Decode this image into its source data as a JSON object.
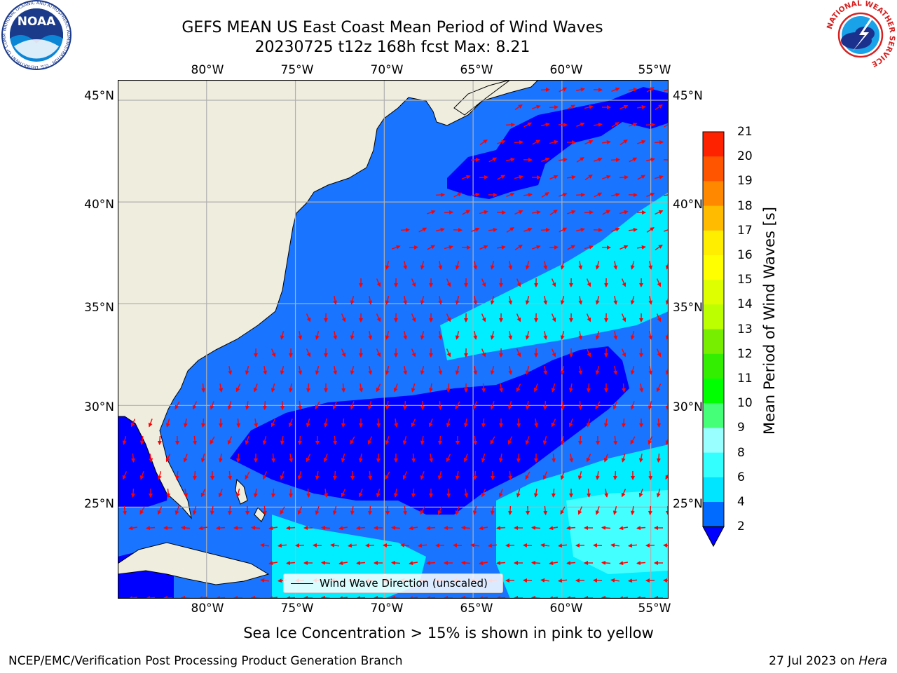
{
  "header": {
    "title_line1": "GEFS MEAN US East Coast Mean Period of Wind Waves",
    "title_line2": "20230725 t12z 168h fcst   Max: 8.21"
  },
  "logos": {
    "noaa": {
      "name": "noaa-logo",
      "text": "NOAA",
      "ring_text": "NATIONAL OCEANIC AND ATMOSPHERIC ADMINISTRATION · U.S. DEPARTMENT OF COMMERCE"
    },
    "nws": {
      "name": "nws-logo",
      "ring_text": "NATIONAL WEATHER SERVICE"
    }
  },
  "map": {
    "lon_ticks": [
      "80°W",
      "75°W",
      "70°W",
      "65°W",
      "60°W",
      "55°W"
    ],
    "lat_ticks": [
      "45°N",
      "40°N",
      "35°N",
      "30°N",
      "25°N"
    ],
    "lon_range": [
      -85,
      -54
    ],
    "lat_range": [
      20.5,
      46
    ],
    "colors": {
      "land": "#efedde",
      "ocean_under_2": "#0000ff",
      "band_2_4": "#1974ff",
      "band_4_6": "#00eeff",
      "band_6_8": "#44ffff",
      "arrow": "#ff0000",
      "grid": "#b0b0b0"
    },
    "arrow_style": "red direction arrows on regular lon/lat grid",
    "legend_label": "Wind Wave Direction (unscaled)"
  },
  "colorbar": {
    "label": "Mean Period of Wind Waves [s]",
    "ticks": [
      "2",
      "4",
      "6",
      "8",
      "9",
      "10",
      "11",
      "12",
      "13",
      "14",
      "15",
      "16",
      "17",
      "18",
      "19",
      "20",
      "21"
    ],
    "colors": [
      "#006cff",
      "#00e5ff",
      "#33ffff",
      "#99ffff",
      "#44ff77",
      "#00ff00",
      "#33ee00",
      "#77ee00",
      "#bbff00",
      "#ddff00",
      "#ffff00",
      "#ffee00",
      "#ffbb00",
      "#ff8800",
      "#ff5500",
      "#ff2200"
    ],
    "under_color": "#0000ff"
  },
  "footer": {
    "note": "Sea Ice Concentration > 15% is shown in pink to yellow",
    "credit_left": "NCEP/EMC/Verification Post Processing Product Generation Branch",
    "credit_date": "27 Jul 2023 on ",
    "credit_host": "Hera"
  }
}
